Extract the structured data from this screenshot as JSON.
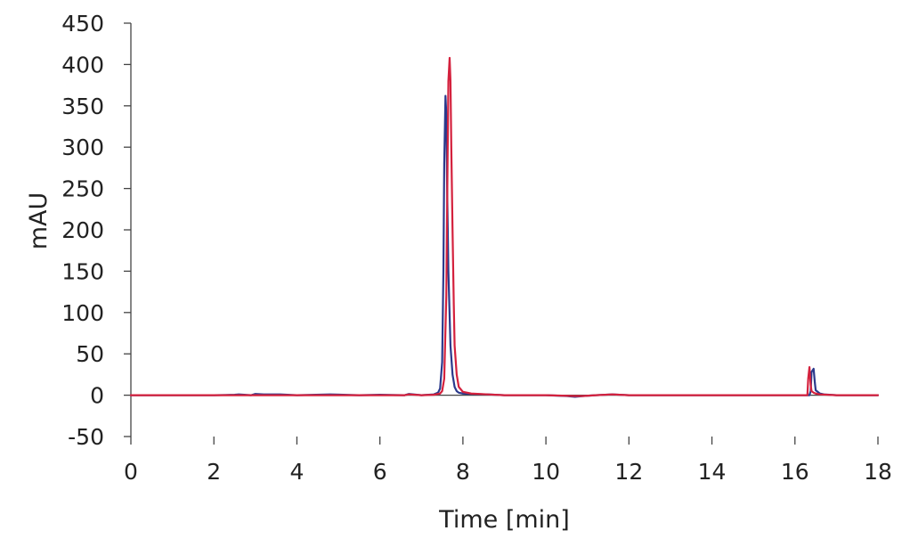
{
  "chart_data": {
    "type": "line",
    "title": "",
    "xlabel": "Time [min]",
    "ylabel": "mAU",
    "xlim": [
      0,
      18
    ],
    "ylim": [
      -50,
      450
    ],
    "xticks": [
      0,
      2,
      4,
      6,
      8,
      10,
      12,
      14,
      16,
      18
    ],
    "yticks": [
      -50,
      0,
      50,
      100,
      150,
      200,
      250,
      300,
      350,
      400,
      450
    ],
    "grid": false,
    "legend": "none",
    "series": [
      {
        "color": "#2b3a8c",
        "x": [
          0,
          1,
          2,
          2.5,
          2.6,
          2.9,
          3.0,
          3.2,
          3.6,
          4.0,
          4.8,
          5.5,
          6.0,
          6.6,
          6.7,
          7.0,
          7.3,
          7.4,
          7.45,
          7.5,
          7.53,
          7.55,
          7.58,
          7.6,
          7.62,
          7.65,
          7.7,
          7.75,
          7.8,
          7.85,
          7.9,
          8.0,
          8.2,
          8.6,
          9.0,
          10.0,
          10.5,
          10.7,
          10.9,
          11.2,
          11.6,
          12.0,
          13.0,
          14.0,
          15.0,
          16.0,
          16.3,
          16.35,
          16.38,
          16.4,
          16.45,
          16.48,
          16.5,
          16.55,
          16.6,
          16.7,
          17.0,
          17.5,
          18.0
        ],
        "y": [
          0,
          0,
          0,
          0.5,
          1,
          0,
          1.5,
          1,
          1,
          0,
          1,
          0,
          0.5,
          0,
          1.5,
          0,
          1,
          3,
          8,
          40,
          150,
          280,
          362,
          340,
          250,
          150,
          60,
          25,
          10,
          5,
          3,
          2,
          1.5,
          1,
          0,
          0,
          -1,
          -2,
          -1,
          0,
          1,
          0,
          0,
          0,
          0,
          0,
          0,
          0,
          5,
          28,
          32,
          15,
          6,
          4,
          2,
          1,
          0,
          0,
          0
        ]
      },
      {
        "color": "#d4213d",
        "x": [
          0,
          1,
          2,
          3,
          4,
          5,
          6,
          6.6,
          6.7,
          7.0,
          7.3,
          7.45,
          7.5,
          7.55,
          7.6,
          7.63,
          7.65,
          7.68,
          7.7,
          7.72,
          7.75,
          7.78,
          7.8,
          7.85,
          7.9,
          8.0,
          8.2,
          8.6,
          9.0,
          10.0,
          10.7,
          10.9,
          11.2,
          11.6,
          12.0,
          13.0,
          14.0,
          15.0,
          16.0,
          16.3,
          16.32,
          16.35,
          16.38,
          16.4,
          16.45,
          16.5,
          16.6,
          17.0,
          17.5,
          18.0
        ],
        "y": [
          0,
          0,
          0,
          0,
          0,
          0,
          0,
          0,
          1,
          0,
          0.5,
          2,
          5,
          20,
          120,
          280,
          380,
          408,
          380,
          300,
          200,
          110,
          60,
          25,
          10,
          4,
          2,
          1,
          0,
          0,
          -1,
          -1,
          0,
          1,
          0,
          0,
          0,
          0,
          0,
          0,
          20,
          34,
          12,
          5,
          3,
          2,
          1,
          0,
          0,
          0
        ]
      }
    ]
  }
}
